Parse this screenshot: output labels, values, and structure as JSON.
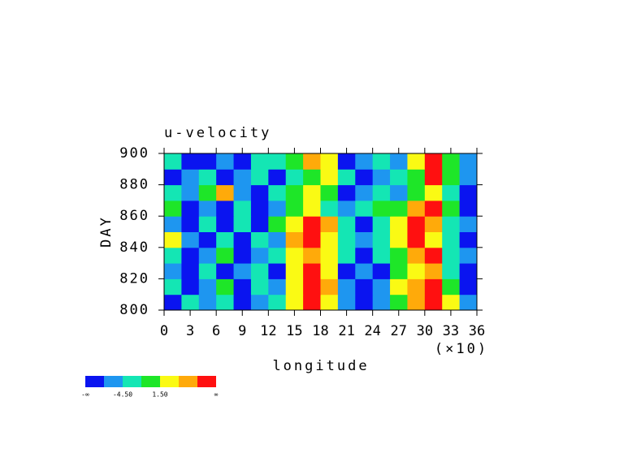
{
  "chart_data": {
    "type": "contour",
    "title": "u-velocity",
    "xlabel": "longitude",
    "ylabel": "DAY",
    "x_multiplier": "(×10)",
    "x": [
      1,
      3,
      5,
      7,
      9,
      11,
      13,
      15,
      17,
      19,
      21,
      23,
      25,
      27,
      29,
      31,
      33,
      35
    ],
    "y": [
      805,
      815,
      825,
      835,
      845,
      855,
      865,
      875,
      885,
      895
    ],
    "z": [
      [
        -8,
        -2,
        -6,
        -3,
        -8,
        -6,
        -2,
        4,
        9,
        3,
        -6,
        -8,
        -5,
        -1,
        6,
        9,
        2,
        -6
      ],
      [
        -3,
        -8,
        -6,
        -1,
        -8,
        -4,
        -6,
        2,
        10,
        5,
        -6,
        -8,
        -6,
        2,
        5,
        10,
        -1,
        -8
      ],
      [
        -6,
        -8,
        -2,
        -8,
        -6,
        -2,
        -8,
        4,
        9,
        2,
        -8,
        -6,
        -8,
        -1,
        3,
        6,
        -3,
        -8
      ],
      [
        -2,
        -8,
        -6,
        -1,
        -8,
        -6,
        -3,
        2,
        6,
        4,
        -2,
        -8,
        -4,
        0,
        5,
        8,
        -2,
        -6
      ],
      [
        2,
        -6,
        -8,
        -2,
        -8,
        -2,
        -6,
        6,
        9,
        2,
        -3,
        -6,
        -2,
        3,
        8,
        4,
        -4,
        -8
      ],
      [
        -6,
        -8,
        -2,
        -8,
        -4,
        -8,
        -1,
        3,
        8,
        5,
        -2,
        -8,
        -2,
        4,
        9,
        6,
        -2,
        -6
      ],
      [
        0,
        -8,
        -6,
        -8,
        -2,
        -8,
        -6,
        -1,
        3,
        -2,
        -6,
        -3,
        -1,
        1,
        5,
        8,
        -1,
        -8
      ],
      [
        -4,
        -6,
        -1,
        5,
        -6,
        -8,
        -2,
        1,
        4,
        0,
        -8,
        -6,
        -2,
        -6,
        1,
        3,
        -3,
        -8
      ],
      [
        -8,
        -6,
        -2,
        -8,
        -6,
        -2,
        -8,
        -2,
        -1,
        3,
        -2,
        -8,
        -6,
        -3,
        0,
        8,
        -1,
        -6
      ],
      [
        -2,
        -8,
        -8,
        -6,
        -8,
        -4,
        -2,
        0,
        6,
        2,
        -8,
        -6,
        -2,
        -6,
        4,
        9,
        1,
        -6
      ]
    ],
    "levels": [
      -7.5,
      -4.5,
      -1.5,
      1.5,
      4.5,
      7.5
    ],
    "colors": [
      "#0a14f0",
      "#1e96f0",
      "#14e6b4",
      "#1ee628",
      "#fafa14",
      "#ffaa0a",
      "#ff1010"
    ],
    "colorbar_ticks": [
      "-∞",
      {
        "value": -4.5,
        "label": "-4.50"
      },
      {
        "value": 1.5,
        "label": "1.50"
      },
      "∞"
    ],
    "xlim": [
      0,
      36
    ],
    "ylim": [
      800,
      900
    ],
    "xticks": [
      0,
      3,
      6,
      9,
      12,
      15,
      18,
      21,
      24,
      27,
      30,
      33,
      36
    ],
    "yticks": [
      800,
      820,
      840,
      860,
      880,
      900
    ]
  }
}
